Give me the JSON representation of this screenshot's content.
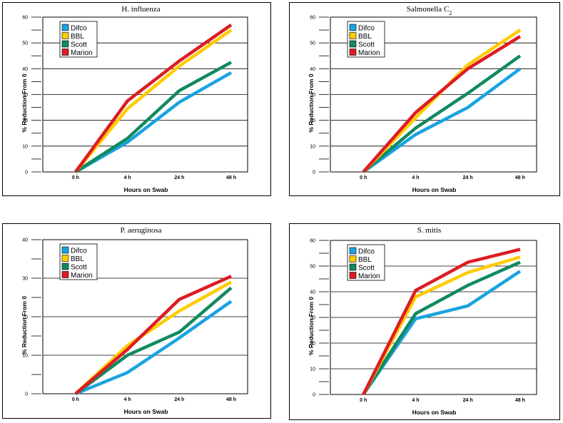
{
  "chart_data": [
    {
      "type": "line",
      "title": "H. influenza",
      "title_sub": "",
      "xlabel": "Hours on Swab",
      "ylabel": "% Reduction From 0",
      "categories": [
        "0 h",
        "4 h",
        "24 h",
        "48 h"
      ],
      "ylim": [
        0,
        60
      ],
      "yticks": [
        0,
        10,
        20,
        30,
        40,
        50,
        60
      ],
      "grid": true,
      "legend": "top-left",
      "series": [
        {
          "name": "Difco",
          "color": "#1aa3e0",
          "values": [
            0,
            11.5,
            27,
            38.5
          ]
        },
        {
          "name": "BBL",
          "color": "#ffcc00",
          "values": [
            0,
            24.5,
            41,
            55
          ]
        },
        {
          "name": "Scott",
          "color": "#118a5e",
          "values": [
            0,
            13,
            31.5,
            42.5
          ]
        },
        {
          "name": "Marion",
          "color": "#dd1c23",
          "values": [
            0,
            27.5,
            43,
            57
          ]
        }
      ]
    },
    {
      "type": "line",
      "title": "Salmonella C",
      "title_sub": "2",
      "xlabel": "Hours on Swab",
      "ylabel": "% Reduction From 0",
      "categories": [
        "0 h",
        "4 h",
        "24 h",
        "48 h"
      ],
      "ylim": [
        0,
        60
      ],
      "yticks": [
        0,
        10,
        20,
        30,
        40,
        50,
        60
      ],
      "grid": true,
      "legend": "top-left",
      "series": [
        {
          "name": "Difco",
          "color": "#1aa3e0",
          "values": [
            0,
            14.5,
            25,
            40
          ]
        },
        {
          "name": "BBL",
          "color": "#ffcc00",
          "values": [
            0,
            21,
            41.5,
            55
          ]
        },
        {
          "name": "Scott",
          "color": "#118a5e",
          "values": [
            0,
            17,
            30.5,
            45
          ]
        },
        {
          "name": "Marion",
          "color": "#dd1c23",
          "values": [
            0,
            23,
            40,
            52.5
          ]
        }
      ]
    },
    {
      "type": "line",
      "title": "P. aeruginosa",
      "title_sub": "",
      "xlabel": "Hours on Swab",
      "ylabel": "% Reduction From 0",
      "categories": [
        "0 h",
        "4 h",
        "24 h",
        "48 h"
      ],
      "ylim": [
        0,
        40
      ],
      "yticks": [
        0,
        10,
        20,
        30,
        40
      ],
      "grid": true,
      "legend": "top-left",
      "series": [
        {
          "name": "Difco",
          "color": "#1aa3e0",
          "values": [
            0,
            5.5,
            14.5,
            24
          ]
        },
        {
          "name": "BBL",
          "color": "#ffcc00",
          "values": [
            0,
            12.5,
            21.5,
            29
          ]
        },
        {
          "name": "Scott",
          "color": "#118a5e",
          "values": [
            0,
            10,
            16,
            27.5
          ]
        },
        {
          "name": "Marion",
          "color": "#dd1c23",
          "values": [
            0,
            11.5,
            24.5,
            30.5
          ]
        }
      ]
    },
    {
      "type": "line",
      "title": "S. mitis",
      "title_sub": "",
      "xlabel": "Hours on Swab",
      "ylabel": "% Reduction From 0",
      "categories": [
        "0 h",
        "4 h",
        "24 h",
        "48 h"
      ],
      "ylim": [
        0,
        60
      ],
      "yticks": [
        0,
        10,
        20,
        30,
        40,
        50,
        60
      ],
      "grid": true,
      "legend": "top-left",
      "series": [
        {
          "name": "Difco",
          "color": "#1aa3e0",
          "values": [
            0,
            29.5,
            34.5,
            48
          ]
        },
        {
          "name": "BBL",
          "color": "#ffcc00",
          "values": [
            0,
            38,
            47.5,
            53.5
          ]
        },
        {
          "name": "Scott",
          "color": "#118a5e",
          "values": [
            0,
            31.5,
            42.5,
            51.5
          ]
        },
        {
          "name": "Marion",
          "color": "#dd1c23",
          "values": [
            0,
            40.5,
            51.5,
            56.5
          ]
        }
      ]
    }
  ]
}
